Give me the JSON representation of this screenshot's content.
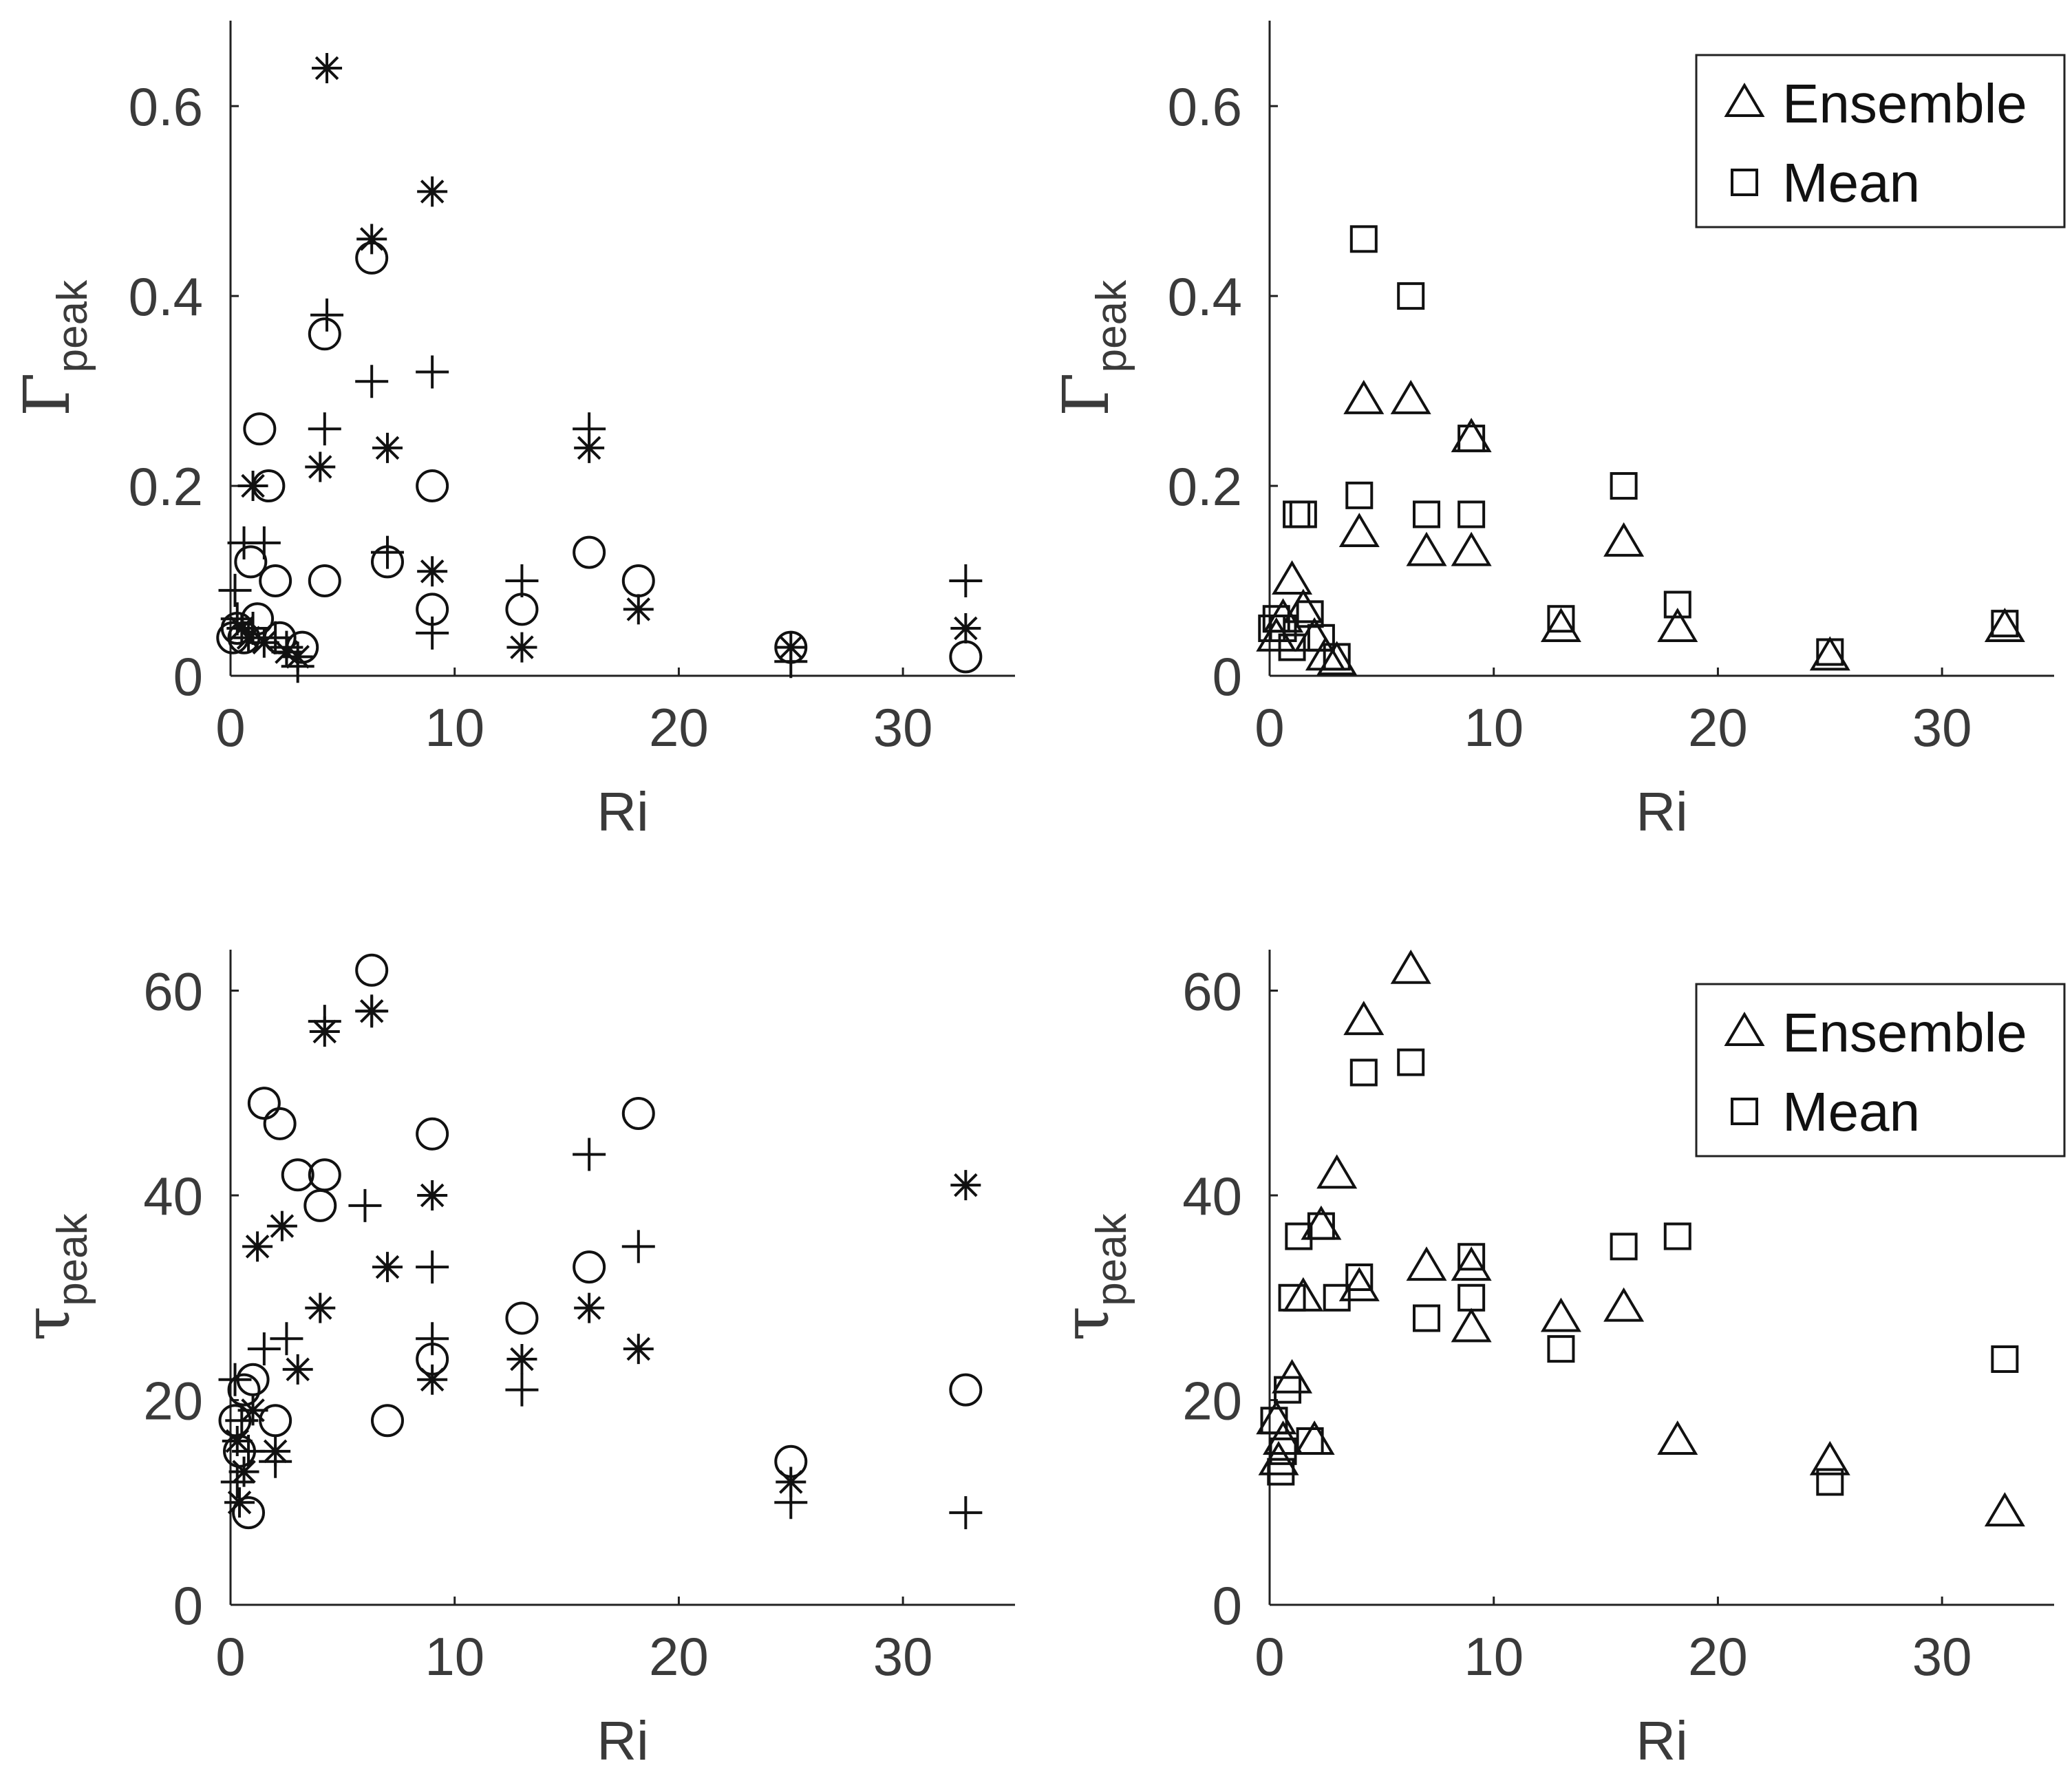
{
  "figure": {
    "description": "Four scatter panels of peak quantities versus Richardson number"
  },
  "chart_data": [
    {
      "type": "scatter",
      "panel": "top-left",
      "xlabel": "Ri",
      "ylabel_symbol": "Γ",
      "ylabel_sub": "peak",
      "xlim": [
        0,
        35
      ],
      "ylim": [
        0,
        0.69
      ],
      "xticks": [
        0,
        10,
        20,
        30
      ],
      "xtick_labels": [
        "0",
        "10",
        "20",
        "30"
      ],
      "yticks": [
        0,
        0.2,
        0.4,
        0.6
      ],
      "ytick_labels": [
        "0",
        "0.2",
        "0.4",
        "0.6"
      ],
      "legend": null,
      "series": [
        {
          "name": "asterisk",
          "marker": "asterisk",
          "points": [
            [
              4.3,
              0.64
            ],
            [
              9,
              0.51
            ],
            [
              6.3,
              0.46
            ],
            [
              4,
              0.22
            ],
            [
              7,
              0.24
            ],
            [
              16,
              0.24
            ],
            [
              1,
              0.2
            ],
            [
              9,
              0.11
            ],
            [
              18.2,
              0.07
            ],
            [
              13,
              0.03
            ],
            [
              32.8,
              0.05
            ],
            [
              25,
              0.03
            ],
            [
              0.5,
              0.05
            ],
            [
              0.8,
              0.04
            ],
            [
              1.5,
              0.035
            ],
            [
              2.5,
              0.025
            ],
            [
              3,
              0.02
            ]
          ]
        },
        {
          "name": "plus",
          "marker": "plus",
          "points": [
            [
              4.3,
              0.38
            ],
            [
              6.3,
              0.31
            ],
            [
              9,
              0.32
            ],
            [
              4.2,
              0.26
            ],
            [
              16,
              0.26
            ],
            [
              7,
              0.13
            ],
            [
              1.5,
              0.14
            ],
            [
              13,
              0.1
            ],
            [
              32.8,
              0.1
            ],
            [
              9,
              0.045
            ],
            [
              0.3,
              0.06
            ],
            [
              0.6,
              0.14
            ],
            [
              1,
              0.05
            ],
            [
              2,
              0.04
            ],
            [
              2.5,
              0.03
            ],
            [
              25,
              0.015
            ],
            [
              3,
              0.01
            ],
            [
              0.2,
              0.09
            ]
          ]
        },
        {
          "name": "circle",
          "marker": "circle",
          "points": [
            [
              6.3,
              0.44
            ],
            [
              4.2,
              0.36
            ],
            [
              1.3,
              0.26
            ],
            [
              1.7,
              0.2
            ],
            [
              9,
              0.2
            ],
            [
              2,
              0.1
            ],
            [
              4.2,
              0.1
            ],
            [
              16,
              0.13
            ],
            [
              7,
              0.12
            ],
            [
              9,
              0.07
            ],
            [
              13,
              0.07
            ],
            [
              18.2,
              0.1
            ],
            [
              25,
              0.03
            ],
            [
              32.8,
              0.02
            ],
            [
              0.3,
              0.05
            ],
            [
              0.6,
              0.04
            ],
            [
              0.9,
              0.12
            ],
            [
              1.2,
              0.06
            ],
            [
              2.2,
              0.04
            ],
            [
              3.2,
              0.03
            ],
            [
              0.1,
              0.04
            ]
          ]
        }
      ]
    },
    {
      "type": "scatter",
      "panel": "top-right",
      "xlabel": "Ri",
      "ylabel_symbol": "Γ",
      "ylabel_sub": "peak",
      "xlim": [
        0,
        35
      ],
      "ylim": [
        0,
        0.69
      ],
      "xticks": [
        0,
        10,
        20,
        30
      ],
      "xtick_labels": [
        "0",
        "10",
        "20",
        "30"
      ],
      "yticks": [
        0,
        0.2,
        0.4,
        0.6
      ],
      "ytick_labels": [
        "0",
        "0.2",
        "0.4",
        "0.6"
      ],
      "legend": {
        "location": "top-right",
        "entries": [
          {
            "label": "Ensemble",
            "marker": "triangle"
          },
          {
            "label": "Mean",
            "marker": "square"
          }
        ]
      },
      "series": [
        {
          "name": "Ensemble",
          "marker": "triangle",
          "points": [
            [
              4.2,
              0.29
            ],
            [
              6.3,
              0.29
            ],
            [
              9,
              0.25
            ],
            [
              4,
              0.15
            ],
            [
              7,
              0.13
            ],
            [
              9,
              0.13
            ],
            [
              15.8,
              0.14
            ],
            [
              1,
              0.1
            ],
            [
              0.3,
              0.04
            ],
            [
              0.6,
              0.06
            ],
            [
              1.5,
              0.07
            ],
            [
              2,
              0.04
            ],
            [
              2.5,
              0.02
            ],
            [
              3,
              0.015
            ],
            [
              13,
              0.05
            ],
            [
              18.2,
              0.05
            ],
            [
              25,
              0.02
            ],
            [
              32.8,
              0.05
            ]
          ]
        },
        {
          "name": "Mean",
          "marker": "square",
          "points": [
            [
              4.2,
              0.46
            ],
            [
              6.3,
              0.4
            ],
            [
              1.2,
              0.17
            ],
            [
              1.5,
              0.17
            ],
            [
              4,
              0.19
            ],
            [
              7,
              0.17
            ],
            [
              9,
              0.17
            ],
            [
              15.8,
              0.2
            ],
            [
              9,
              0.25
            ],
            [
              13,
              0.06
            ],
            [
              18.2,
              0.075
            ],
            [
              25,
              0.025
            ],
            [
              32.8,
              0.055
            ],
            [
              0.3,
              0.06
            ],
            [
              0.6,
              0.05
            ],
            [
              1,
              0.03
            ],
            [
              1.8,
              0.065
            ],
            [
              2.3,
              0.04
            ],
            [
              3,
              0.02
            ],
            [
              0.1,
              0.05
            ]
          ]
        }
      ]
    },
    {
      "type": "scatter",
      "panel": "bottom-left",
      "xlabel": "Ri",
      "ylabel_symbol": "τ",
      "ylabel_sub": "peak",
      "xlim": [
        0,
        35
      ],
      "ylim": [
        0,
        64
      ],
      "xticks": [
        0,
        10,
        20,
        30
      ],
      "xtick_labels": [
        "0",
        "10",
        "20",
        "30"
      ],
      "yticks": [
        0,
        20,
        40,
        60
      ],
      "ytick_labels": [
        "0",
        "20",
        "40",
        "60"
      ],
      "legend": null,
      "series": [
        {
          "name": "asterisk",
          "marker": "asterisk",
          "points": [
            [
              4.2,
              56
            ],
            [
              6.3,
              58
            ],
            [
              9,
              40
            ],
            [
              1.2,
              35
            ],
            [
              2.3,
              37
            ],
            [
              7,
              33
            ],
            [
              4,
              29
            ],
            [
              3,
              23
            ],
            [
              9,
              22
            ],
            [
              13,
              24
            ],
            [
              16,
              29
            ],
            [
              18.2,
              25
            ],
            [
              25,
              12
            ],
            [
              32.8,
              41
            ],
            [
              0.3,
              16
            ],
            [
              0.6,
              13
            ],
            [
              1,
              19
            ],
            [
              2,
              15
            ],
            [
              0.4,
              10
            ]
          ]
        },
        {
          "name": "plus",
          "marker": "plus",
          "points": [
            [
              6.3,
              58
            ],
            [
              4.2,
              57
            ],
            [
              6,
              39
            ],
            [
              9,
              33
            ],
            [
              9,
              26
            ],
            [
              16,
              44
            ],
            [
              18.2,
              35
            ],
            [
              13,
              21
            ],
            [
              25,
              10
            ],
            [
              32.8,
              9
            ],
            [
              1.5,
              25
            ],
            [
              2.5,
              26
            ],
            [
              2,
              14
            ],
            [
              0.2,
              22
            ],
            [
              0.5,
              18
            ],
            [
              0.8,
              15
            ],
            [
              0.3,
              12
            ]
          ]
        },
        {
          "name": "circle",
          "marker": "circle",
          "points": [
            [
              6.3,
              62
            ],
            [
              1.5,
              49
            ],
            [
              2.2,
              47
            ],
            [
              3,
              42
            ],
            [
              4.2,
              42
            ],
            [
              4,
              39
            ],
            [
              9,
              46
            ],
            [
              18.2,
              48
            ],
            [
              16,
              33
            ],
            [
              13,
              28
            ],
            [
              9,
              24
            ],
            [
              7,
              18
            ],
            [
              32.8,
              21
            ],
            [
              25,
              14
            ],
            [
              0.2,
              18
            ],
            [
              0.6,
              21
            ],
            [
              1,
              22
            ],
            [
              2,
              18
            ],
            [
              0.8,
              9
            ],
            [
              0.4,
              15
            ]
          ]
        }
      ]
    },
    {
      "type": "scatter",
      "panel": "bottom-right",
      "xlabel": "Ri",
      "ylabel_symbol": "τ",
      "ylabel_sub": "peak",
      "xlim": [
        0,
        35
      ],
      "ylim": [
        0,
        64
      ],
      "xticks": [
        0,
        10,
        20,
        30
      ],
      "xtick_labels": [
        "0",
        "10",
        "20",
        "30"
      ],
      "yticks": [
        0,
        20,
        40,
        60
      ],
      "ytick_labels": [
        "0",
        "20",
        "40",
        "60"
      ],
      "legend": {
        "location": "top-right",
        "entries": [
          {
            "label": "Ensemble",
            "marker": "triangle"
          },
          {
            "label": "Mean",
            "marker": "square"
          }
        ]
      },
      "series": [
        {
          "name": "Ensemble",
          "marker": "triangle",
          "points": [
            [
              6.3,
              62
            ],
            [
              4.2,
              57
            ],
            [
              3,
              42
            ],
            [
              2.3,
              37
            ],
            [
              7,
              33
            ],
            [
              9,
              33
            ],
            [
              4,
              31
            ],
            [
              1.5,
              30
            ],
            [
              9,
              27
            ],
            [
              13,
              28
            ],
            [
              15.8,
              29
            ],
            [
              18.2,
              16
            ],
            [
              25,
              14
            ],
            [
              32.8,
              9
            ],
            [
              1,
              22
            ],
            [
              0.3,
              18
            ],
            [
              0.6,
              16
            ],
            [
              2,
              16
            ],
            [
              0.4,
              14
            ]
          ]
        },
        {
          "name": "Mean",
          "marker": "square",
          "points": [
            [
              6.3,
              53
            ],
            [
              4.2,
              52
            ],
            [
              1.3,
              36
            ],
            [
              2.3,
              37
            ],
            [
              4,
              32
            ],
            [
              1,
              30
            ],
            [
              3,
              30
            ],
            [
              7,
              28
            ],
            [
              9,
              30
            ],
            [
              9,
              34
            ],
            [
              13,
              25
            ],
            [
              15.8,
              35
            ],
            [
              18.2,
              36
            ],
            [
              25,
              12
            ],
            [
              32.8,
              24
            ],
            [
              0.8,
              21
            ],
            [
              0.2,
              18
            ],
            [
              0.6,
              15
            ],
            [
              0.5,
              13
            ],
            [
              1.8,
              16
            ]
          ]
        }
      ]
    }
  ]
}
